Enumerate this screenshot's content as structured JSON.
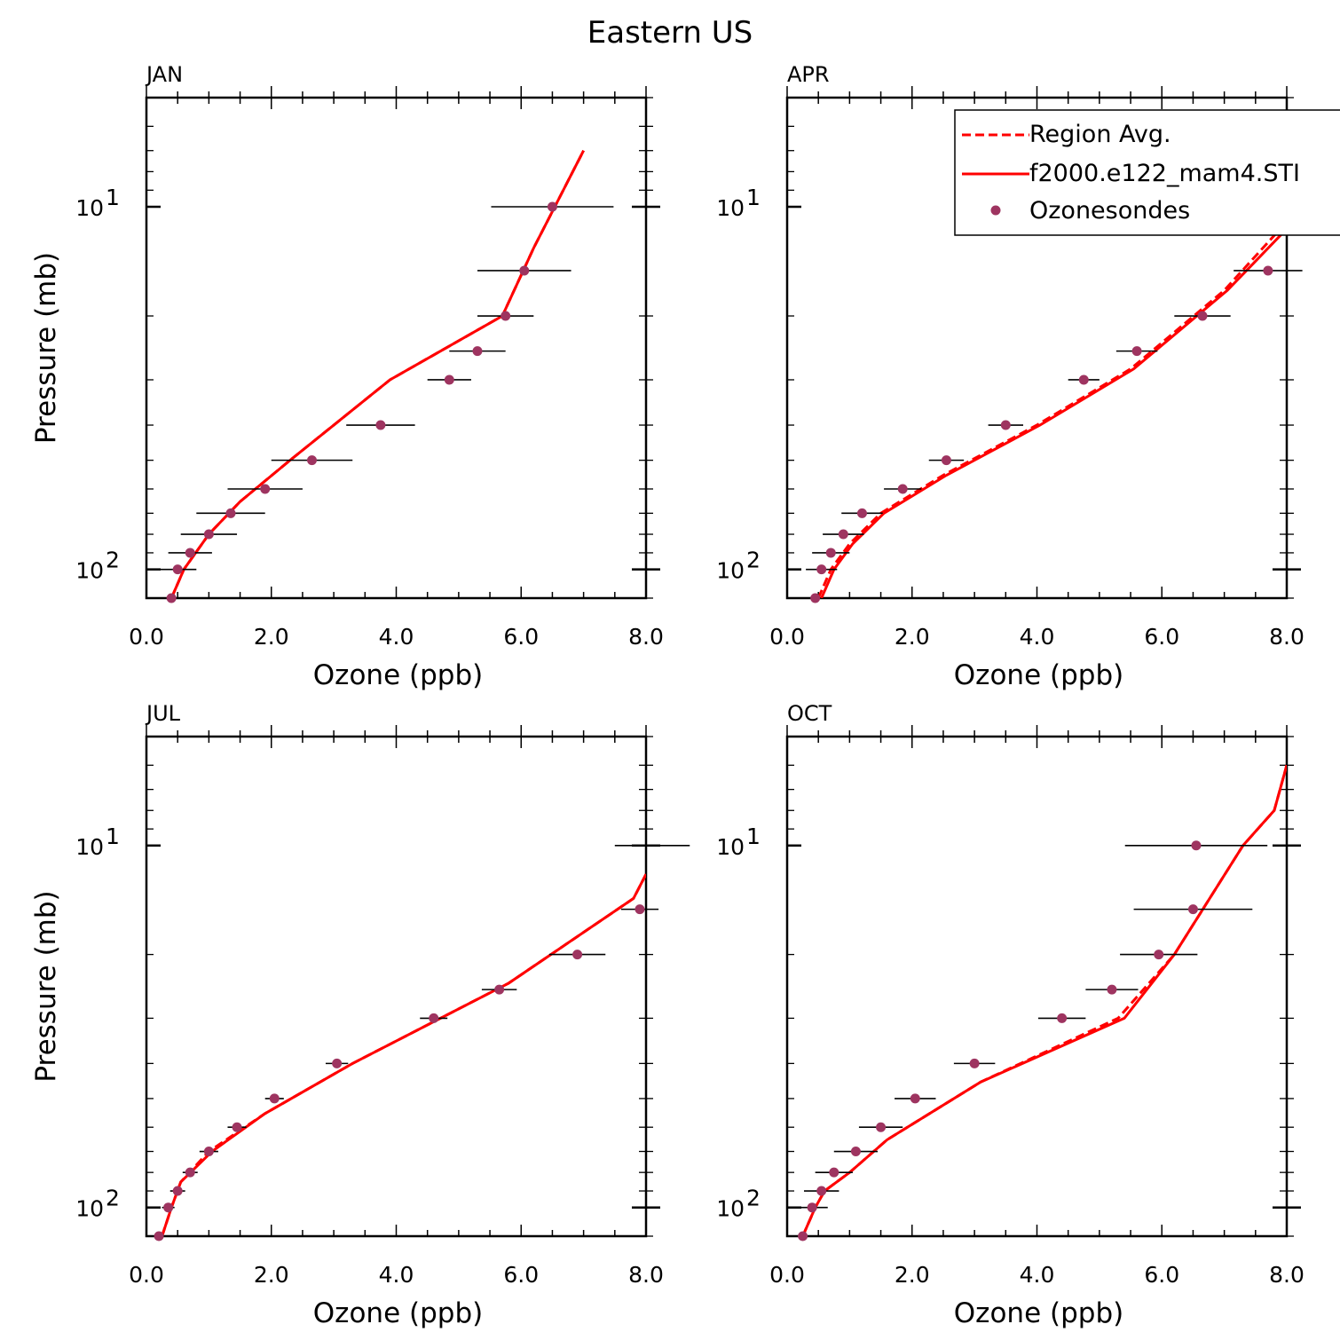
{
  "figure": {
    "title": "Eastern US"
  },
  "legend": {
    "entries": [
      {
        "label": "Region Avg.",
        "style": "dashed",
        "color": "#ff0000"
      },
      {
        "label": "f2000.e122_mam4.STI",
        "style": "solid",
        "color": "#ff0000"
      },
      {
        "label": "Ozonesondes",
        "style": "marker",
        "color": "#9e3460"
      }
    ]
  },
  "colors": {
    "model_line": "#ff0000",
    "marker": "#9e3460",
    "error_bar": "#000000"
  },
  "chart_data": [
    {
      "type": "line",
      "title": "JAN",
      "xlabel": "Ozone (ppb)",
      "ylabel": "Pressure (mb)",
      "xlim": [
        0,
        8
      ],
      "ylim": [
        120,
        5
      ],
      "yscale": "log",
      "x_ticks": [
        "0.0",
        "2.0",
        "4.0",
        "6.0",
        "8.0"
      ],
      "y_ticks": [
        {
          "value": 10,
          "base": "10",
          "exp": "1"
        },
        {
          "value": 100,
          "base": "10",
          "exp": "2"
        }
      ],
      "series": [
        {
          "name": "Region Avg.",
          "points": [
            [
              0.4,
              120
            ],
            [
              0.6,
              100
            ],
            [
              1.0,
              80
            ],
            [
              1.5,
              65
            ],
            [
              2.3,
              50
            ],
            [
              3.9,
              30
            ],
            [
              5.7,
              20
            ],
            [
              6.2,
              13
            ],
            [
              7.0,
              7
            ]
          ]
        },
        {
          "name": "f2000.e122_mam4.STI",
          "points": [
            [
              0.4,
              120
            ],
            [
              0.6,
              100
            ],
            [
              1.0,
              80
            ],
            [
              1.5,
              65
            ],
            [
              2.3,
              50
            ],
            [
              3.9,
              30
            ],
            [
              5.7,
              20
            ],
            [
              6.2,
              13
            ],
            [
              7.0,
              7
            ]
          ]
        },
        {
          "name": "Ozonesondes",
          "points": [
            {
              "x": 0.4,
              "y": 120,
              "xerr": 0
            },
            {
              "x": 0.5,
              "y": 100,
              "xerr": 0.3
            },
            {
              "x": 0.7,
              "y": 90,
              "xerr": 0.35
            },
            {
              "x": 1.0,
              "y": 80,
              "xerr": 0.45
            },
            {
              "x": 1.35,
              "y": 70,
              "xerr": 0.55
            },
            {
              "x": 1.9,
              "y": 60,
              "xerr": 0.6
            },
            {
              "x": 2.65,
              "y": 50,
              "xerr": 0.65
            },
            {
              "x": 3.75,
              "y": 40,
              "xerr": 0.55
            },
            {
              "x": 4.85,
              "y": 30,
              "xerr": 0.35
            },
            {
              "x": 5.3,
              "y": 25,
              "xerr": 0.45
            },
            {
              "x": 5.75,
              "y": 20,
              "xerr": 0.45
            },
            {
              "x": 6.05,
              "y": 15,
              "xerr": 0.75
            },
            {
              "x": 6.5,
              "y": 10,
              "xerr": 0.98
            }
          ]
        }
      ]
    },
    {
      "type": "line",
      "title": "APR",
      "xlabel": "Ozone (ppb)",
      "ylabel": "",
      "xlim": [
        0,
        8
      ],
      "ylim": [
        120,
        5
      ],
      "yscale": "log",
      "x_ticks": [
        "0.0",
        "2.0",
        "4.0",
        "6.0",
        "8.0"
      ],
      "y_ticks": [
        {
          "value": 10,
          "base": "10",
          "exp": "1"
        },
        {
          "value": 100,
          "base": "10",
          "exp": "2"
        }
      ],
      "series": [
        {
          "name": "Region Avg.",
          "points": [
            [
              0.5,
              120
            ],
            [
              0.7,
              100
            ],
            [
              1.0,
              85
            ],
            [
              1.5,
              70
            ],
            [
              2.5,
              55
            ],
            [
              4.0,
              40
            ],
            [
              5.5,
              28
            ],
            [
              7.0,
              17
            ],
            [
              8.0,
              11
            ]
          ]
        },
        {
          "name": "f2000.e122_mam4.STI",
          "points": [
            [
              0.55,
              120
            ],
            [
              0.75,
              100
            ],
            [
              1.05,
              85
            ],
            [
              1.55,
              70
            ],
            [
              2.55,
              55
            ],
            [
              4.05,
              40
            ],
            [
              5.55,
              28
            ],
            [
              7.05,
              17
            ],
            [
              8.0,
              11.5
            ]
          ]
        },
        {
          "name": "Ozonesondes",
          "points": [
            {
              "x": 0.45,
              "y": 120,
              "xerr": 0
            },
            {
              "x": 0.55,
              "y": 100,
              "xerr": 0.25
            },
            {
              "x": 0.7,
              "y": 90,
              "xerr": 0.3
            },
            {
              "x": 0.9,
              "y": 80,
              "xerr": 0.33
            },
            {
              "x": 1.2,
              "y": 70,
              "xerr": 0.33
            },
            {
              "x": 1.85,
              "y": 60,
              "xerr": 0.3
            },
            {
              "x": 2.55,
              "y": 50,
              "xerr": 0.28
            },
            {
              "x": 3.5,
              "y": 40,
              "xerr": 0.28
            },
            {
              "x": 4.75,
              "y": 30,
              "xerr": 0.25
            },
            {
              "x": 5.6,
              "y": 25,
              "xerr": 0.33
            },
            {
              "x": 6.65,
              "y": 20,
              "xerr": 0.45
            },
            {
              "x": 7.7,
              "y": 15,
              "xerr": 0.55
            }
          ]
        }
      ]
    },
    {
      "type": "line",
      "title": "JUL",
      "xlabel": "Ozone (ppb)",
      "ylabel": "Pressure (mb)",
      "xlim": [
        0,
        8
      ],
      "ylim": [
        120,
        5
      ],
      "yscale": "log",
      "x_ticks": [
        "0.0",
        "2.0",
        "4.0",
        "6.0",
        "8.0"
      ],
      "y_ticks": [
        {
          "value": 10,
          "base": "10",
          "exp": "1"
        },
        {
          "value": 100,
          "base": "10",
          "exp": "2"
        }
      ],
      "series": [
        {
          "name": "Region Avg.",
          "points": [
            [
              0.25,
              120
            ],
            [
              0.4,
              100
            ],
            [
              0.55,
              85
            ],
            [
              1.0,
              70
            ],
            [
              1.9,
              55
            ],
            [
              3.3,
              40
            ],
            [
              5.8,
              24
            ],
            [
              7.8,
              14
            ],
            [
              8.0,
              12
            ]
          ]
        },
        {
          "name": "f2000.e122_mam4.STI",
          "points": [
            [
              0.25,
              120
            ],
            [
              0.4,
              100
            ],
            [
              0.55,
              85
            ],
            [
              1.05,
              70
            ],
            [
              1.9,
              55
            ],
            [
              3.3,
              40
            ],
            [
              5.8,
              24
            ],
            [
              7.8,
              14
            ],
            [
              8.0,
              12
            ]
          ]
        },
        {
          "name": "Ozonesondes",
          "points": [
            {
              "x": 0.2,
              "y": 120,
              "xerr": 0
            },
            {
              "x": 0.35,
              "y": 100,
              "xerr": 0.1
            },
            {
              "x": 0.5,
              "y": 90,
              "xerr": 0.12
            },
            {
              "x": 0.7,
              "y": 80,
              "xerr": 0.12
            },
            {
              "x": 1.0,
              "y": 70,
              "xerr": 0.15
            },
            {
              "x": 1.45,
              "y": 60,
              "xerr": 0.15
            },
            {
              "x": 2.05,
              "y": 50,
              "xerr": 0.15
            },
            {
              "x": 3.05,
              "y": 40,
              "xerr": 0.18
            },
            {
              "x": 4.6,
              "y": 30,
              "xerr": 0.22
            },
            {
              "x": 5.65,
              "y": 25,
              "xerr": 0.28
            },
            {
              "x": 6.9,
              "y": 20,
              "xerr": 0.45
            },
            {
              "x": 7.9,
              "y": 15,
              "xerr": 0.3
            },
            {
              "x": 8.1,
              "y": 10,
              "xerr": 0.6
            }
          ]
        }
      ]
    },
    {
      "type": "line",
      "title": "OCT",
      "xlabel": "Ozone (ppb)",
      "ylabel": "",
      "xlim": [
        0,
        8
      ],
      "ylim": [
        120,
        5
      ],
      "yscale": "log",
      "x_ticks": [
        "0.0",
        "2.0",
        "4.0",
        "6.0",
        "8.0"
      ],
      "y_ticks": [
        {
          "value": 10,
          "base": "10",
          "exp": "1"
        },
        {
          "value": 100,
          "base": "10",
          "exp": "2"
        }
      ],
      "series": [
        {
          "name": "Region Avg.",
          "points": [
            [
              0.25,
              120
            ],
            [
              0.45,
              100
            ],
            [
              0.6,
              90
            ],
            [
              1.0,
              80
            ],
            [
              1.6,
              65
            ],
            [
              3.1,
              45
            ],
            [
              5.3,
              30
            ],
            [
              6.2,
              20
            ],
            [
              7.3,
              10
            ],
            [
              7.8,
              8
            ],
            [
              8.0,
              6
            ]
          ]
        },
        {
          "name": "f2000.e122_mam4.STI",
          "points": [
            [
              0.25,
              120
            ],
            [
              0.45,
              100
            ],
            [
              0.6,
              90
            ],
            [
              1.0,
              80
            ],
            [
              1.6,
              65
            ],
            [
              3.1,
              45
            ],
            [
              5.4,
              30
            ],
            [
              6.2,
              20
            ],
            [
              7.3,
              10
            ],
            [
              7.8,
              8
            ],
            [
              8.0,
              6
            ]
          ]
        },
        {
          "name": "Ozonesondes",
          "points": [
            {
              "x": 0.25,
              "y": 120,
              "xerr": 0
            },
            {
              "x": 0.4,
              "y": 100,
              "xerr": 0.25
            },
            {
              "x": 0.55,
              "y": 90,
              "xerr": 0.28
            },
            {
              "x": 0.75,
              "y": 80,
              "xerr": 0.3
            },
            {
              "x": 1.1,
              "y": 70,
              "xerr": 0.35
            },
            {
              "x": 1.5,
              "y": 60,
              "xerr": 0.35
            },
            {
              "x": 2.05,
              "y": 50,
              "xerr": 0.33
            },
            {
              "x": 3.0,
              "y": 40,
              "xerr": 0.33
            },
            {
              "x": 4.4,
              "y": 30,
              "xerr": 0.38
            },
            {
              "x": 5.2,
              "y": 25,
              "xerr": 0.42
            },
            {
              "x": 5.95,
              "y": 20,
              "xerr": 0.62
            },
            {
              "x": 6.5,
              "y": 15,
              "xerr": 0.95
            },
            {
              "x": 6.55,
              "y": 10,
              "xerr": 1.14
            }
          ]
        }
      ]
    }
  ]
}
